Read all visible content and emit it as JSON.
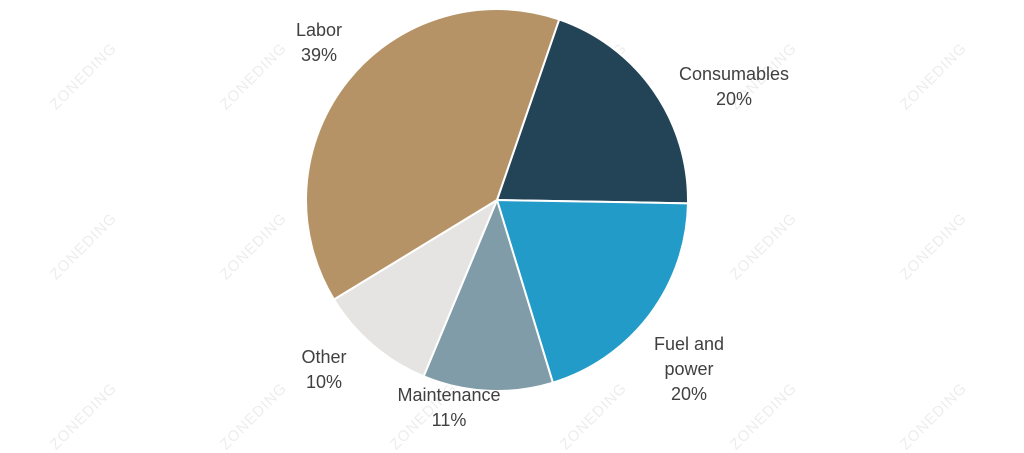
{
  "watermark": "ZONEDING",
  "chart_data": {
    "type": "pie",
    "title": "",
    "start_angle_deg": 71,
    "slices": [
      {
        "label": "Consumables",
        "value": 20,
        "display": "20%",
        "color": "#234457"
      },
      {
        "label": "Fuel and power",
        "value": 20,
        "display": "20%",
        "color": "#239bc8"
      },
      {
        "label": "Maintenance",
        "value": 11,
        "display": "11%",
        "color": "#7f9ca8"
      },
      {
        "label": "Other",
        "value": 10,
        "display": "10%",
        "color": "#e6e4e2"
      },
      {
        "label": "Labor",
        "value": 39,
        "display": "39%",
        "color": "#b69366"
      }
    ]
  }
}
